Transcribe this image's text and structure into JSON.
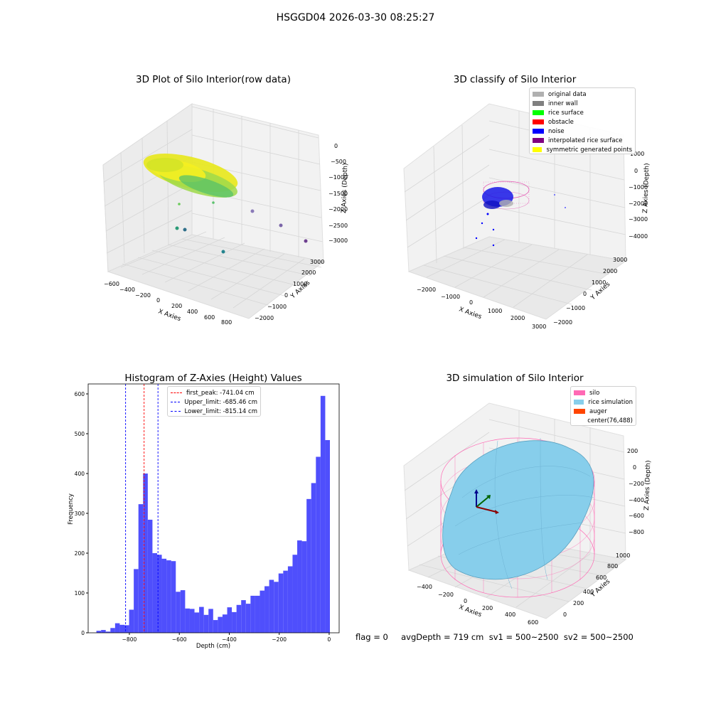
{
  "suptitle": "HSGGD04 2026-03-30 08:25:27",
  "panels": {
    "raw": {
      "title": "3D Plot of Silo Interior(row data)",
      "x_ticks": [
        "−600",
        "−400",
        "−200",
        "0",
        "200",
        "400",
        "600",
        "800"
      ],
      "y_ticks": [
        "−2000",
        "−1000",
        "0",
        "1000",
        "2000",
        "3000"
      ],
      "z_ticks": [
        "0",
        "−500",
        "−1000",
        "−1500",
        "−2000",
        "−2500",
        "−3000"
      ],
      "xlabel": "X Axies",
      "ylabel": "Y Axies",
      "zlabel": "Z Axies (Depth)"
    },
    "classify": {
      "title": "3D classify of Silo Interior",
      "x_ticks": [
        "−2000",
        "−1000",
        "0",
        "1000",
        "2000",
        "3000"
      ],
      "y_ticks": [
        "−2000",
        "−1000",
        "0",
        "1000",
        "2000",
        "3000"
      ],
      "z_ticks": [
        "1000",
        "0",
        "−1000",
        "−2000",
        "−3000",
        "−4000"
      ],
      "xlabel": "X Axies",
      "ylabel": "Y Axies",
      "zlabel": "Z Axies (Depth)",
      "legend": [
        {
          "label": "original data",
          "color": "#b0b0b0"
        },
        {
          "label": "inner wall",
          "color": "#808080"
        },
        {
          "label": "rice surface",
          "color": "#00ff00"
        },
        {
          "label": "obstacle",
          "color": "#ff0000"
        },
        {
          "label": "noise",
          "color": "#0000ff"
        },
        {
          "label": "interpolated rice surface",
          "color": "#800080"
        },
        {
          "label": "symmetric generated points",
          "color": "#ffff00"
        }
      ]
    },
    "simulation": {
      "title": "3D simulation of Silo Interior",
      "x_ticks": [
        "−400",
        "−200",
        "0",
        "200",
        "400",
        "600"
      ],
      "y_ticks": [
        "0",
        "200",
        "400",
        "600",
        "800",
        "1000"
      ],
      "z_ticks": [
        "200",
        "0",
        "−200",
        "−400",
        "−600",
        "−800"
      ],
      "xlabel": "X Axies",
      "ylabel": "Y Axies",
      "zlabel": "Z Axies (Depth)",
      "legend": [
        {
          "label": "silo",
          "color": "#ff69b4"
        },
        {
          "label": "rice simulation",
          "color": "#87ceeb"
        },
        {
          "label": "auger",
          "color": "#ff4500"
        },
        {
          "label": "center(76,488)",
          "color": ""
        }
      ],
      "status": "flag = 0     avgDepth = 719 cm  sv1 = 500~2500  sv2 = 500~2500"
    }
  },
  "chart_data": {
    "type": "bar",
    "title": "Histogram of Z-Axies (Height) Values",
    "xlabel": "Depth (cm)",
    "ylabel": "Frequency",
    "xlim": [
      -965,
      40
    ],
    "ylim": [
      0,
      625
    ],
    "x_ticks": [
      -800,
      -600,
      -400,
      -200,
      0
    ],
    "x_tick_labels": [
      "−800",
      "−600",
      "−400",
      "−200",
      "0"
    ],
    "y_ticks": [
      0,
      100,
      200,
      300,
      400,
      500,
      600
    ],
    "bin_start": -932,
    "bin_width": 18.7,
    "values": [
      5,
      7,
      3,
      12,
      24,
      20,
      19,
      58,
      160,
      323,
      400,
      284,
      200,
      196,
      186,
      182,
      180,
      103,
      107,
      61,
      60,
      51,
      65,
      45,
      60,
      32,
      40,
      46,
      64,
      52,
      70,
      82,
      73,
      93,
      93,
      106,
      117,
      133,
      128,
      149,
      156,
      167,
      196,
      232,
      230,
      336,
      376,
      442,
      595,
      484
    ],
    "bar_color": "#4f4ffc",
    "vlines": [
      {
        "label": "first_peak: -741.04 cm",
        "x": -741.04,
        "color": "#ff0000"
      },
      {
        "label": "Upper_limit: -685.46 cm",
        "x": -685.46,
        "color": "#0000ff"
      },
      {
        "label": "Lower_limit: -815.14 cm",
        "x": -815.14,
        "color": "#0000ff"
      }
    ],
    "legend_position": "top-center"
  }
}
